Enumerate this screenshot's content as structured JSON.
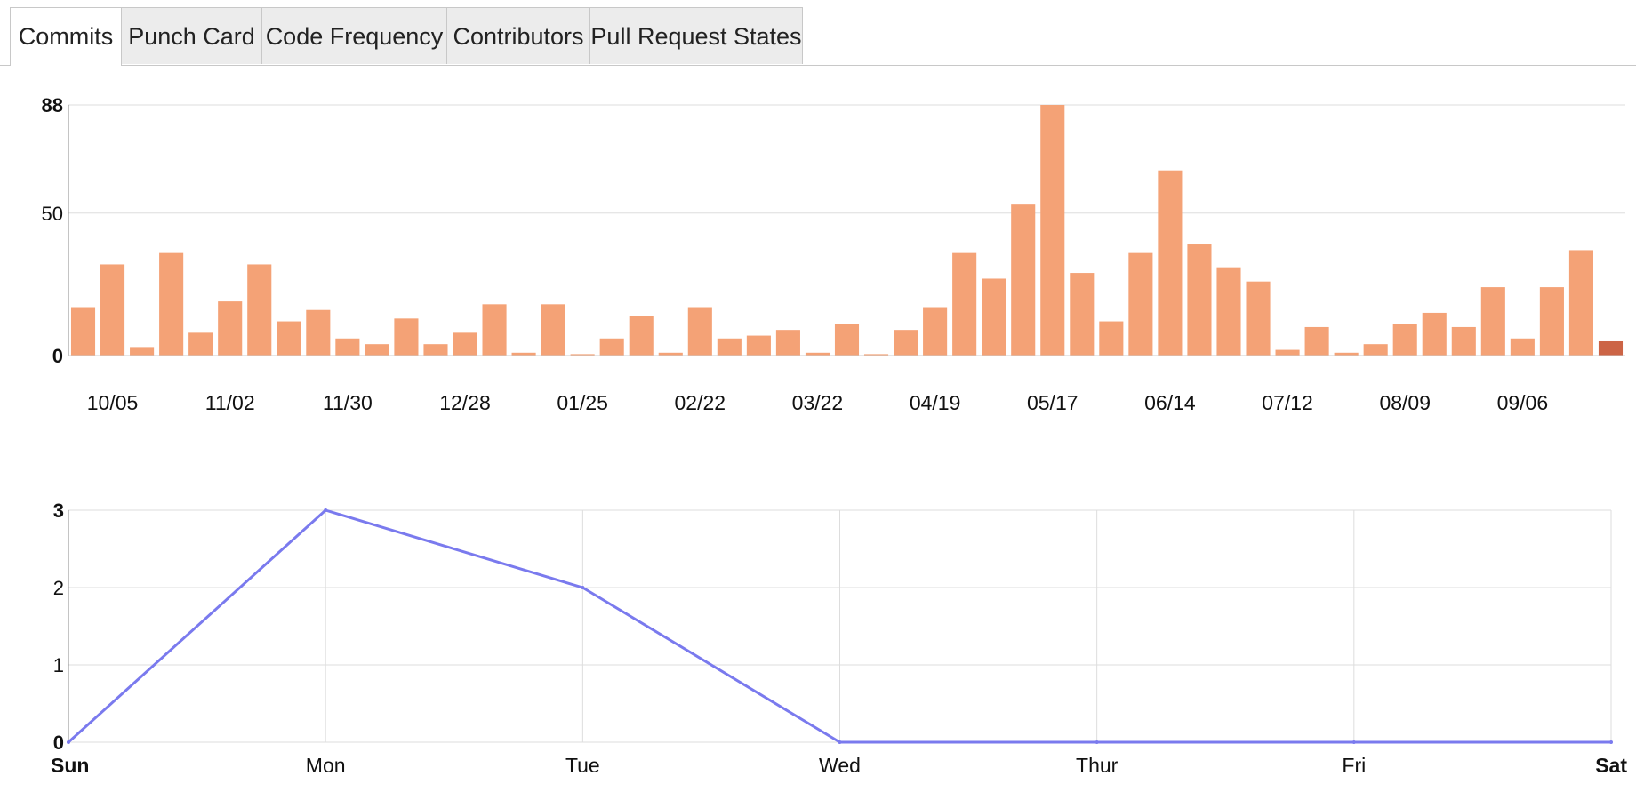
{
  "tabs": [
    {
      "label": "Commits",
      "active": true
    },
    {
      "label": "Punch Card",
      "active": false
    },
    {
      "label": "Code Frequency",
      "active": false
    },
    {
      "label": "Contributors",
      "active": false
    },
    {
      "label": "Pull Request States",
      "active": false
    }
  ],
  "colors": {
    "bar": "#f4a276",
    "bar_current": "#cc6446",
    "line": "#7a7aee",
    "grid": "#dddddd",
    "axis": "#888888"
  },
  "chart_data": [
    {
      "type": "bar",
      "title": "",
      "xlabel": "",
      "ylabel": "",
      "ylim": [
        0,
        88
      ],
      "y_ticks": [
        0,
        50,
        88
      ],
      "grid": "horizontal",
      "x_tick_labels": [
        "10/05",
        "11/02",
        "11/30",
        "12/28",
        "01/25",
        "02/22",
        "03/22",
        "04/19",
        "05/17",
        "06/14",
        "07/12",
        "08/09",
        "09/06"
      ],
      "x_tick_every": 4,
      "x_tick_offset": 1,
      "values": [
        17,
        32,
        3,
        36,
        8,
        19,
        32,
        12,
        16,
        6,
        4,
        13,
        4,
        8,
        18,
        1,
        18,
        0.5,
        6,
        14,
        1,
        17,
        6,
        7,
        9,
        1,
        11,
        0.5,
        9,
        17,
        36,
        27,
        53,
        88,
        29,
        12,
        36,
        65,
        39,
        31,
        26,
        2,
        10,
        1,
        4,
        11,
        15,
        10,
        24,
        6,
        24,
        37,
        5
      ],
      "highlight_last": true
    },
    {
      "type": "line",
      "title": "",
      "xlabel": "",
      "ylabel": "",
      "categories": [
        "Sun",
        "Mon",
        "Tue",
        "Wed",
        "Thur",
        "Fri",
        "Sat"
      ],
      "values": [
        0,
        3,
        2,
        0,
        0,
        0,
        0
      ],
      "ylim": [
        0,
        3
      ],
      "y_ticks": [
        0,
        1,
        2,
        3
      ],
      "grid": "both"
    }
  ]
}
